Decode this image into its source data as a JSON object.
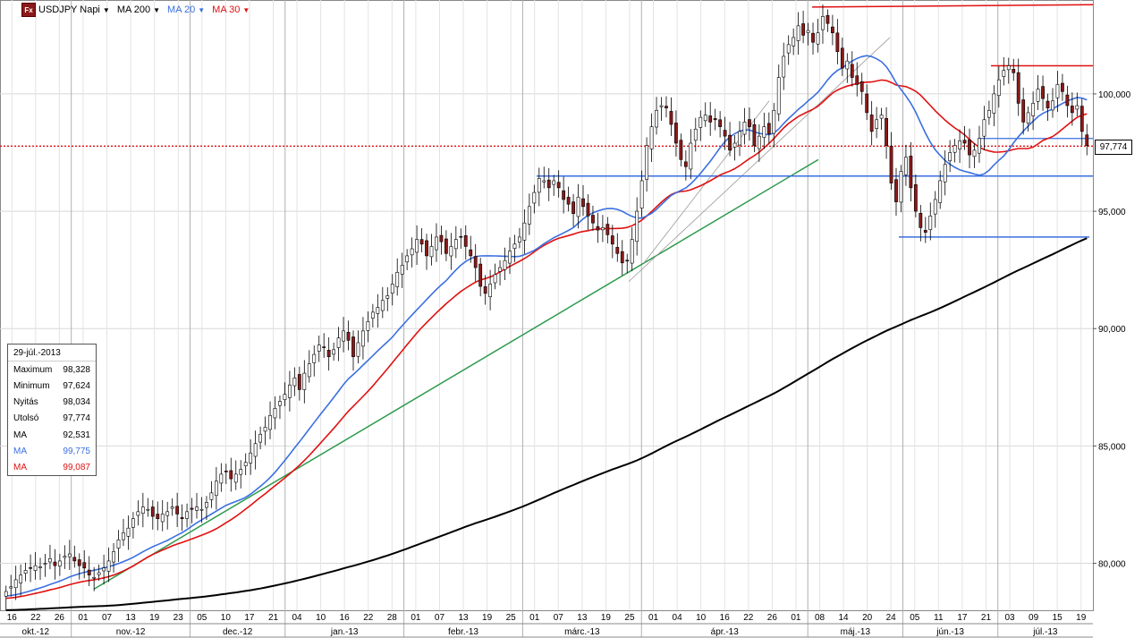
{
  "toolbar": {
    "symbol_label": "USDJPY Napi",
    "ma200_label": "MA 200",
    "ma20_label": "MA 20",
    "ma30_label": "MA 30",
    "icon": "fx-icon"
  },
  "colors": {
    "ma200": "#000000",
    "ma20": "#3a6fe0",
    "ma30": "#e01010",
    "trend": "#2e9a4e",
    "up": "#ffffff",
    "down": "#8b1a1a",
    "hline_blue": "#3a6fe0",
    "hline_red": "#e01010",
    "last": "#e01010"
  },
  "info": {
    "date": "29-júl.-2013",
    "rows": [
      {
        "label": "Maximum",
        "value": "98,328"
      },
      {
        "label": "Minimum",
        "value": "97,624"
      },
      {
        "label": "Nyitás",
        "value": "98,034"
      },
      {
        "label": "Utolsó",
        "value": "97,774"
      },
      {
        "label": "MA",
        "value": "92,531"
      },
      {
        "label": "MA",
        "value": "99,775"
      },
      {
        "label": "MA",
        "value": "99,087"
      }
    ]
  },
  "last_price_label": "97,774",
  "chart_data": {
    "type": "candlestick",
    "y_ticks": [
      80,
      85,
      90,
      95,
      100
    ],
    "y_tick_labels": [
      "80,000",
      "85,000",
      "90,000",
      "95,000",
      "100,000"
    ],
    "ylim": [
      78,
      104
    ],
    "last": 97.774,
    "day_ticks": [
      "16",
      "22",
      "26",
      "01",
      "07",
      "13",
      "19",
      "23",
      "05",
      "10",
      "17",
      "21",
      "04",
      "10",
      "16",
      "22",
      "28",
      "01",
      "07",
      "13",
      "19",
      "25",
      "01",
      "07",
      "13",
      "19",
      "25",
      "01",
      "04",
      "10",
      "16",
      "22",
      "26",
      "01",
      "08",
      "14",
      "20",
      "24",
      "05",
      "11",
      "17",
      "21",
      "03",
      "09",
      "15",
      "19"
    ],
    "months": [
      "okt.-12",
      "nov.-12",
      "dec.-12",
      "jan.-13",
      "febr.-13",
      "márc.-13",
      "ápr.-13",
      "máj.-13",
      "jún.-13",
      "júl.-13"
    ],
    "closes": [
      78.8,
      79.0,
      79.3,
      79.5,
      79.7,
      79.8,
      79.9,
      79.85,
      80.0,
      80.2,
      79.9,
      80.1,
      80.3,
      80.4,
      80.1,
      79.9,
      79.8,
      79.5,
      79.4,
      79.6,
      79.8,
      80.1,
      80.5,
      81.0,
      81.3,
      81.5,
      81.9,
      82.2,
      82.4,
      82.3,
      82.0,
      81.9,
      82.1,
      82.2,
      82.4,
      82.1,
      81.9,
      82.2,
      82.3,
      82.4,
      82.3,
      82.6,
      83.0,
      83.5,
      83.8,
      83.9,
      83.6,
      83.8,
      84.0,
      84.3,
      84.7,
      85.1,
      85.5,
      85.8,
      86.3,
      86.6,
      86.9,
      87.2,
      87.6,
      87.9,
      87.4,
      88.1,
      88.5,
      88.9,
      89.3,
      89.2,
      88.8,
      89.1,
      89.6,
      89.9,
      89.5,
      88.8,
      89.4,
      89.9,
      90.3,
      90.7,
      90.9,
      91.2,
      91.4,
      91.9,
      92.4,
      92.7,
      93.1,
      93.4,
      93.8,
      93.6,
      93.1,
      93.5,
      93.9,
      93.7,
      93.2,
      93.5,
      93.8,
      93.9,
      93.5,
      93.1,
      92.6,
      91.8,
      91.5,
      91.9,
      92.3,
      92.6,
      92.9,
      93.3,
      93.6,
      93.9,
      94.5,
      95.2,
      95.8,
      96.4,
      96.3,
      96.0,
      96.3,
      96.0,
      95.5,
      95.3,
      94.9,
      95.6,
      95.2,
      94.8,
      94.5,
      94.2,
      94.3,
      94.0,
      93.6,
      93.2,
      92.8,
      92.9,
      93.8,
      95.0,
      96.3,
      97.8,
      98.6,
      99.3,
      99.5,
      99.4,
      98.7,
      97.9,
      97.2,
      96.9,
      97.9,
      98.5,
      99.0,
      99.1,
      98.8,
      98.9,
      98.6,
      98.2,
      97.6,
      97.9,
      98.4,
      98.8,
      98.6,
      97.8,
      98.2,
      98.6,
      98.3,
      99.3,
      100.7,
      101.6,
      102.1,
      102.4,
      102.9,
      102.5,
      102.7,
      102.2,
      102.6,
      103.3,
      103.0,
      102.6,
      101.8,
      101.1,
      101.4,
      100.7,
      100.4,
      100.1,
      99.2,
      98.4,
      98.9,
      99.1,
      97.8,
      96.2,
      95.4,
      96.7,
      97.3,
      96.0,
      95.0,
      94.3,
      94.1,
      94.8,
      95.5,
      96.3,
      97.0,
      97.5,
      97.8,
      98.0,
      97.9,
      97.4,
      97.6,
      98.1,
      98.9,
      99.3,
      100.0,
      100.6,
      101.0,
      101.2,
      100.9,
      99.6,
      98.8,
      99.2,
      99.6,
      100.2,
      99.8,
      99.4,
      99.7,
      100.4,
      100.1,
      99.5,
      99.2,
      99.5,
      98.4,
      97.8
    ]
  }
}
